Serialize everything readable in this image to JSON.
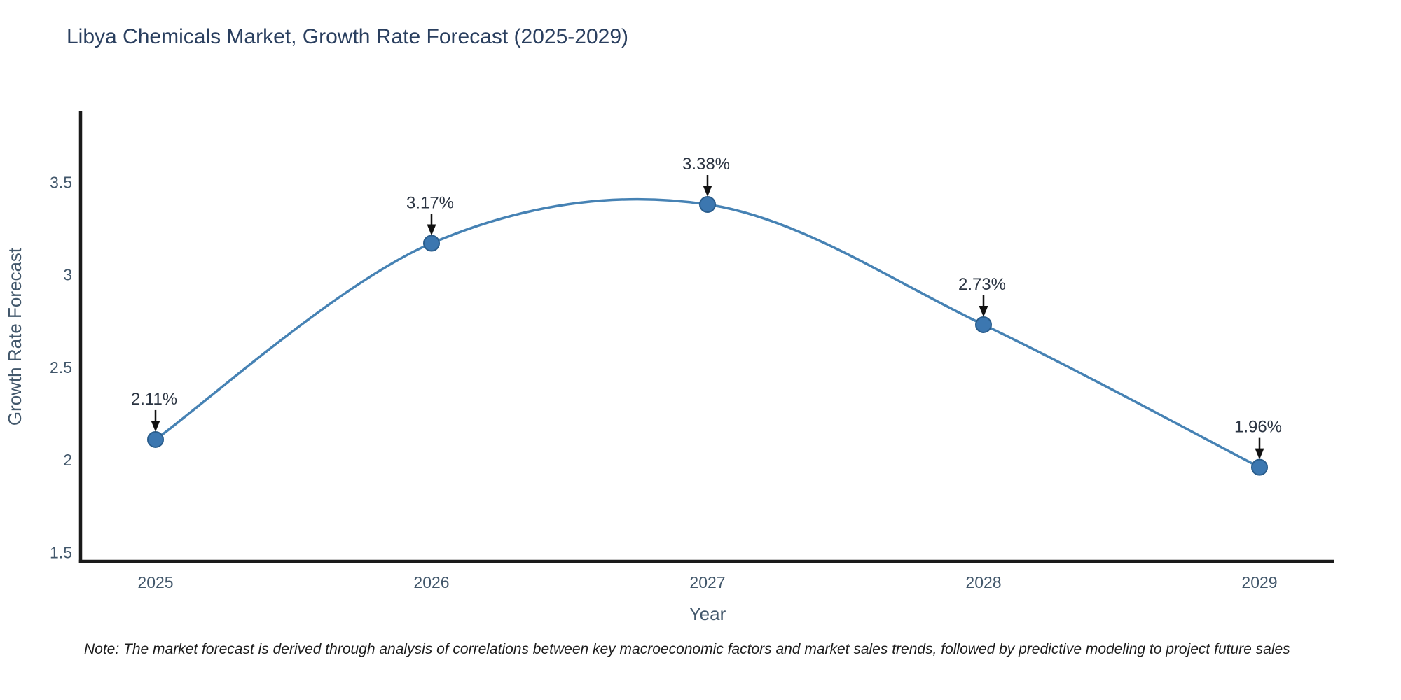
{
  "title": "Libya Chemicals Market, Growth Rate Forecast (2025-2029)",
  "note": "Note: The market forecast is derived through analysis of correlations between key macroeconomic factors and market sales trends, followed by predictive modeling to project future sales",
  "colors": {
    "title_text": "#2a3f5f",
    "tick_text": "#42576b",
    "axis_line": "#1a1a1a",
    "annotation_text": "#2b3442",
    "arrow": "#111111"
  },
  "chart_data": {
    "type": "line",
    "title": "Libya Chemicals Market, Growth Rate Forecast (2025-2029)",
    "x": [
      "2025",
      "2026",
      "2027",
      "2028",
      "2029"
    ],
    "values": [
      2.11,
      3.17,
      3.38,
      2.73,
      1.96
    ],
    "point_labels": [
      "2.11%",
      "3.17%",
      "3.38%",
      "2.73%",
      "1.96%"
    ],
    "xlabel": "Year",
    "ylabel": "Growth Rate Forecast",
    "ylim": [
      1.452,
      3.879
    ],
    "yticks": [
      1.5,
      2,
      2.5,
      3,
      3.5
    ],
    "grid": false,
    "legend": false,
    "smooth": true,
    "line_color": "#4682b4",
    "marker_color": "#3c77b0",
    "marker_edge_color": "#2a5d8c"
  }
}
